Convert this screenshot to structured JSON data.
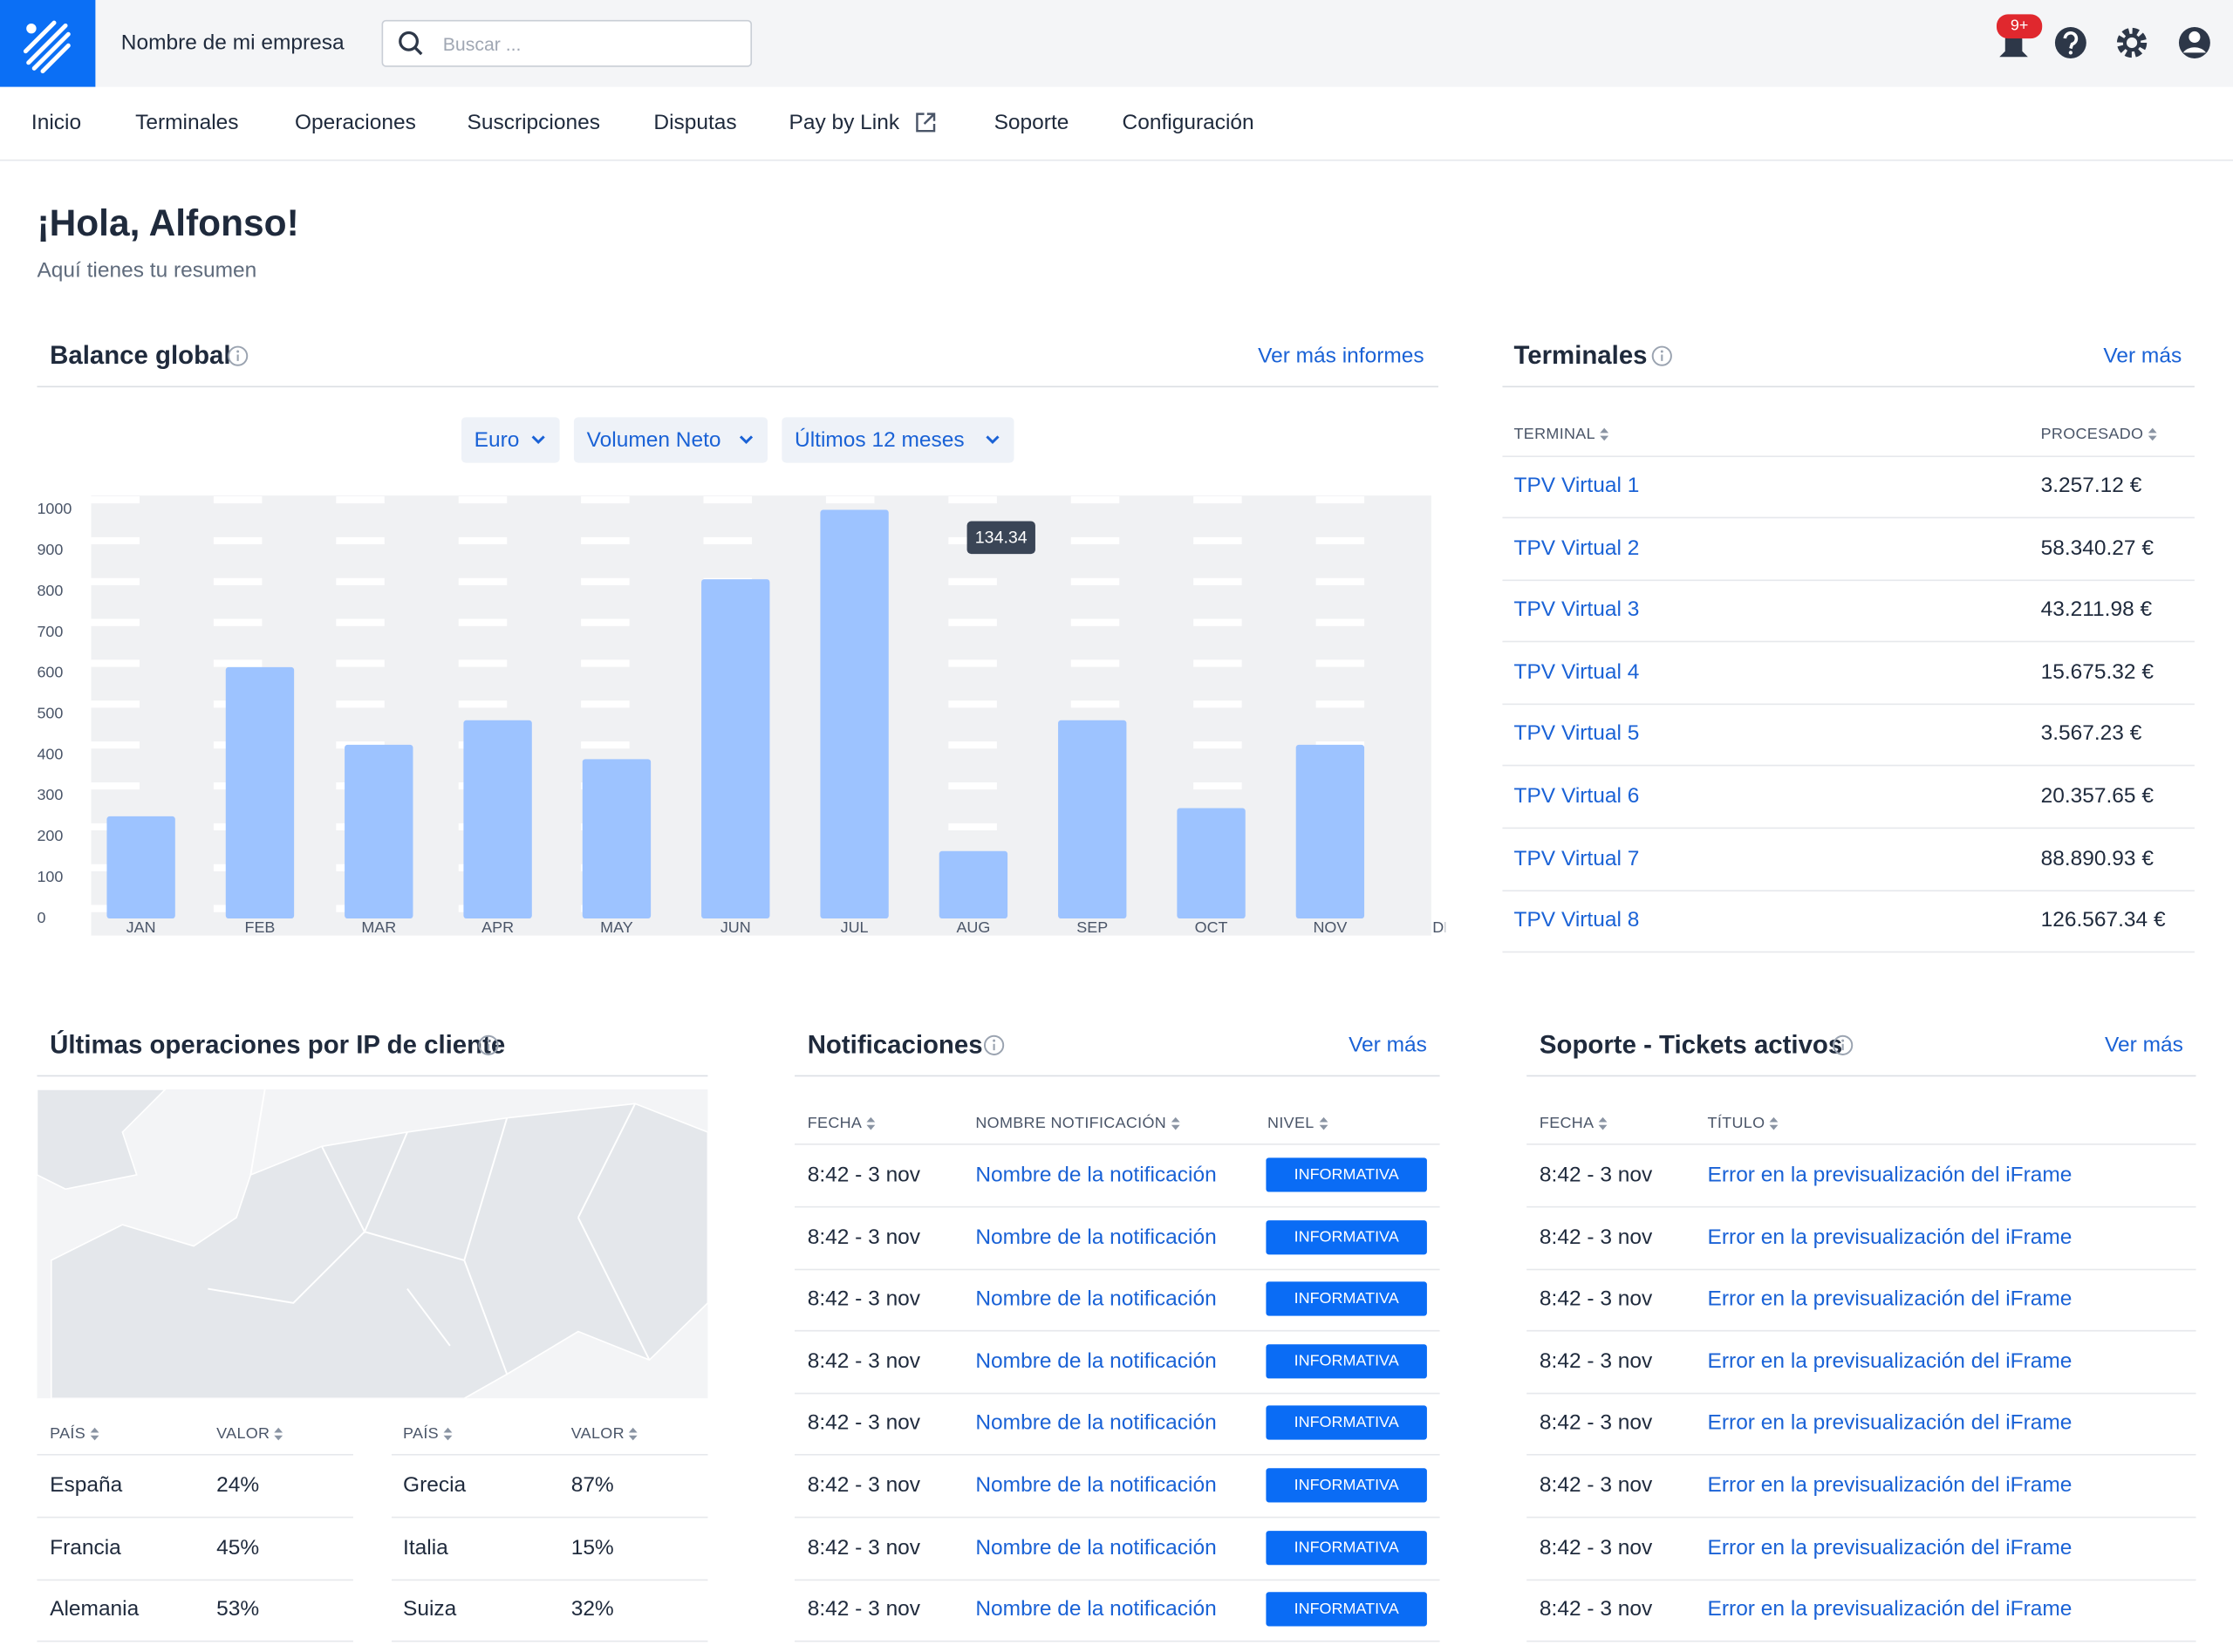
{
  "header": {
    "company": "Nombre de mi empresa",
    "search_placeholder": "Buscar ...",
    "badge": "9+"
  },
  "nav": [
    "Inicio",
    "Terminales",
    "Operaciones",
    "Suscripciones",
    "Disputas",
    "Pay by Link",
    "Soporte",
    "Configuración"
  ],
  "greeting": {
    "title": "¡Hola, Alfonso!",
    "subtitle": "Aquí tienes tu resumen"
  },
  "balance": {
    "title": "Balance global",
    "link": "Ver más informes",
    "filters": [
      "Euro",
      "Volumen Neto",
      "Últimos 12 meses"
    ]
  },
  "chart_data": {
    "type": "bar",
    "categories": [
      "JAN",
      "FEB",
      "MAR",
      "APR",
      "MAY",
      "JUN",
      "JUL",
      "AUG",
      "SEP",
      "OCT",
      "NOV",
      "DEC"
    ],
    "values": [
      250,
      615,
      425,
      485,
      390,
      830,
      1000,
      165,
      485,
      270,
      425,
      null
    ],
    "color": "#9dc3ff",
    "ylim": [
      0,
      1000
    ],
    "yticks": [
      0,
      100,
      200,
      300,
      400,
      500,
      600,
      700,
      800,
      900,
      1000
    ],
    "grid": true,
    "annotation": "134.34"
  },
  "terminals": {
    "title": "Terminales",
    "link": "Ver más",
    "columns": [
      "TERMINAL",
      "PROCESADO"
    ],
    "rows": [
      [
        "TPV Virtual 1",
        "3.257.12 €"
      ],
      [
        "TPV Virtual 2",
        "58.340.27 €"
      ],
      [
        "TPV Virtual 3",
        "43.211.98 €"
      ],
      [
        "TPV Virtual 4",
        "15.675.32 €"
      ],
      [
        "TPV Virtual 5",
        "3.567.23 €"
      ],
      [
        "TPV Virtual 6",
        "20.357.65 €"
      ],
      [
        "TPV Virtual 7",
        "88.890.93 €"
      ],
      [
        "TPV Virtual 8",
        "126.567.34 €"
      ]
    ]
  },
  "ip": {
    "title": "Últimas operaciones por IP de cliente",
    "columns": [
      "PAÍS",
      "VALOR",
      "PAÍS",
      "VALOR"
    ],
    "rows": [
      [
        "España",
        "24%",
        "Grecia",
        "87%"
      ],
      [
        "Francia",
        "45%",
        "Italia",
        "15%"
      ],
      [
        "Alemania",
        "53%",
        "Suiza",
        "32%"
      ]
    ]
  },
  "notifications": {
    "title": "Notificaciones",
    "link": "Ver más",
    "columns": [
      "FECHA",
      "NOMBRE NOTIFICACIÓN",
      "NIVEL"
    ],
    "rows": [
      [
        "8:42 - 3 nov",
        "Nombre de la notificación",
        "INFORMATIVA"
      ],
      [
        "8:42 - 3 nov",
        "Nombre de la notificación",
        "INFORMATIVA"
      ],
      [
        "8:42 - 3 nov",
        "Nombre de la notificación",
        "INFORMATIVA"
      ],
      [
        "8:42 - 3 nov",
        "Nombre de la notificación",
        "INFORMATIVA"
      ],
      [
        "8:42 - 3 nov",
        "Nombre de la notificación",
        "INFORMATIVA"
      ],
      [
        "8:42 - 3 nov",
        "Nombre de la notificación",
        "INFORMATIVA"
      ],
      [
        "8:42 - 3 nov",
        "Nombre de la notificación",
        "INFORMATIVA"
      ],
      [
        "8:42 - 3 nov",
        "Nombre de la notificación",
        "INFORMATIVA"
      ]
    ]
  },
  "support": {
    "title": "Soporte - Tickets activos",
    "link": "Ver más",
    "columns": [
      "FECHA",
      "TÍTULO"
    ],
    "rows": [
      [
        "8:42 - 3 nov",
        "Error en la previsualización del iFrame"
      ],
      [
        "8:42 - 3 nov",
        "Error en la previsualización del iFrame"
      ],
      [
        "8:42 - 3 nov",
        "Error en la previsualización del iFrame"
      ],
      [
        "8:42 - 3 nov",
        "Error en la previsualización del iFrame"
      ],
      [
        "8:42 - 3 nov",
        "Error en la previsualización del iFrame"
      ],
      [
        "8:42 - 3 nov",
        "Error en la previsualización del iFrame"
      ],
      [
        "8:42 - 3 nov",
        "Error en la previsualización del iFrame"
      ],
      [
        "8:42 - 3 nov",
        "Error en la previsualización del iFrame"
      ]
    ]
  }
}
